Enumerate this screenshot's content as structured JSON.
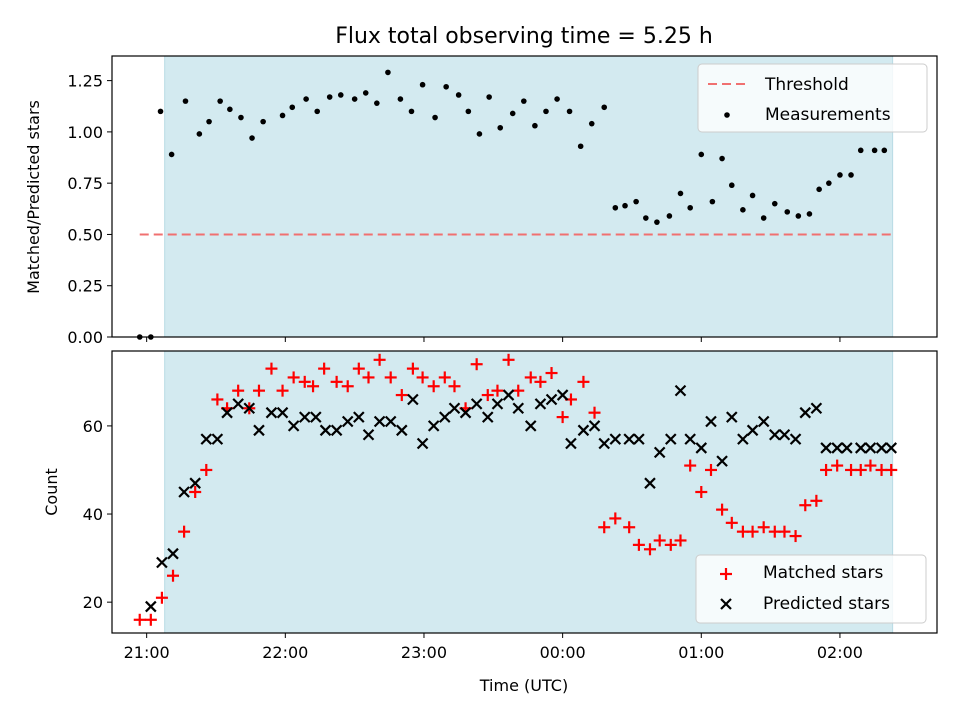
{
  "title": "Flux total observing time = 5.25 h",
  "chart_data": [
    {
      "type": "scatter",
      "ylabel": "Matched/Predicted stars",
      "xlabel": "",
      "x_unit": "hours UTC (continuing past midnight)",
      "xlim": [
        20.75,
        26.7
      ],
      "ylim": [
        0.0,
        1.37
      ],
      "yticks": [
        "0.00",
        "0.25",
        "0.50",
        "0.75",
        "1.00",
        "1.25"
      ],
      "shaded_interval": [
        21.13,
        26.38
      ],
      "threshold": {
        "name": "Threshold",
        "value": 0.5,
        "x_range": [
          20.95,
          26.38
        ],
        "color": "#f07070"
      },
      "legend": {
        "position": "upper right",
        "entries": [
          "Threshold",
          "Measurements"
        ]
      },
      "series": [
        {
          "name": "Measurements",
          "color": "#000000",
          "x": [
            20.95,
            21.03,
            21.1,
            21.18,
            21.28,
            21.38,
            21.45,
            21.53,
            21.6,
            21.68,
            21.76,
            21.84,
            21.98,
            22.05,
            22.15,
            22.23,
            22.32,
            22.4,
            22.5,
            22.58,
            22.66,
            22.74,
            22.83,
            22.91,
            22.99,
            23.08,
            23.16,
            23.25,
            23.32,
            23.4,
            23.47,
            23.55,
            23.64,
            23.72,
            23.8,
            23.88,
            23.96,
            24.05,
            24.13,
            24.21,
            24.3,
            24.38,
            24.45,
            24.53,
            24.6,
            24.68,
            24.77,
            24.85,
            24.92,
            25.0,
            25.08,
            25.15,
            25.22,
            25.3,
            25.37,
            25.45,
            25.53,
            25.62,
            25.7,
            25.78,
            25.85,
            25.92,
            26.0,
            26.08,
            26.15,
            26.25,
            26.32
          ],
          "y": [
            0.0,
            0.0,
            1.1,
            0.89,
            1.15,
            0.99,
            1.05,
            1.15,
            1.11,
            1.07,
            0.97,
            1.05,
            1.08,
            1.12,
            1.16,
            1.1,
            1.17,
            1.18,
            1.16,
            1.19,
            1.14,
            1.29,
            1.16,
            1.1,
            1.23,
            1.07,
            1.22,
            1.18,
            1.1,
            0.99,
            1.17,
            1.02,
            1.09,
            1.15,
            1.03,
            1.1,
            1.16,
            1.1,
            0.93,
            1.04,
            1.12,
            0.63,
            0.64,
            0.66,
            0.58,
            0.56,
            0.59,
            0.7,
            0.63,
            0.89,
            0.66,
            0.87,
            0.74,
            0.62,
            0.69,
            0.58,
            0.65,
            0.61,
            0.59,
            0.6,
            0.72,
            0.75,
            0.79,
            0.79,
            0.91,
            0.91,
            0.91
          ]
        }
      ]
    },
    {
      "type": "scatter",
      "ylabel": "Count",
      "xlabel": "Time (UTC)",
      "xlim": [
        20.75,
        26.7
      ],
      "ylim": [
        13,
        77
      ],
      "yticks": [
        "20",
        "40",
        "60"
      ],
      "xticks": [
        "21:00",
        "22:00",
        "23:00",
        "00:00",
        "01:00",
        "02:00"
      ],
      "xtick_values": [
        21,
        22,
        23,
        24,
        25,
        26
      ],
      "shaded_interval": [
        21.13,
        26.38
      ],
      "legend": {
        "position": "lower right",
        "entries": [
          "Matched stars",
          "Predicted stars"
        ]
      },
      "series": [
        {
          "name": "Matched stars",
          "marker": "+",
          "color": "#ff0000",
          "x": [
            20.95,
            21.03,
            21.11,
            21.19,
            21.27,
            21.35,
            21.43,
            21.51,
            21.58,
            21.66,
            21.74,
            21.81,
            21.9,
            21.98,
            22.06,
            22.14,
            22.2,
            22.28,
            22.37,
            22.45,
            22.53,
            22.6,
            22.68,
            22.76,
            22.84,
            22.92,
            22.99,
            23.07,
            23.15,
            23.22,
            23.3,
            23.38,
            23.46,
            23.53,
            23.61,
            23.68,
            23.77,
            23.84,
            23.92,
            24.0,
            24.06,
            24.15,
            24.23,
            24.3,
            24.38,
            24.48,
            24.55,
            24.63,
            24.7,
            24.78,
            24.85,
            24.92,
            25.0,
            25.07,
            25.15,
            25.22,
            25.3,
            25.37,
            25.45,
            25.53,
            25.6,
            25.68,
            25.75,
            25.83,
            25.9,
            25.98,
            26.08,
            26.15,
            26.22,
            26.3,
            26.37
          ],
          "y": [
            16,
            16,
            21,
            26,
            36,
            45,
            50,
            66,
            64,
            68,
            64,
            68,
            73,
            68,
            71,
            70,
            69,
            73,
            70,
            69,
            73,
            71,
            75,
            71,
            67,
            73,
            71,
            69,
            71,
            69,
            64,
            74,
            67,
            68,
            75,
            68,
            71,
            70,
            72,
            62,
            66,
            70,
            63,
            37,
            39,
            37,
            33,
            32,
            34,
            33,
            34,
            51,
            45,
            50,
            41,
            38,
            36,
            36,
            37,
            36,
            36,
            35,
            42,
            43,
            50,
            51,
            50,
            50,
            51,
            50,
            50
          ]
        },
        {
          "name": "Predicted stars",
          "marker": "x",
          "color": "#000000",
          "x": [
            21.03,
            21.11,
            21.19,
            21.27,
            21.35,
            21.43,
            21.51,
            21.58,
            21.66,
            21.74,
            21.81,
            21.9,
            21.98,
            22.06,
            22.14,
            22.22,
            22.29,
            22.37,
            22.45,
            22.53,
            22.6,
            22.68,
            22.76,
            22.84,
            22.92,
            22.99,
            23.07,
            23.15,
            23.22,
            23.3,
            23.38,
            23.46,
            23.53,
            23.61,
            23.68,
            23.77,
            23.84,
            23.92,
            24.0,
            24.06,
            24.15,
            24.23,
            24.3,
            24.38,
            24.48,
            24.55,
            24.63,
            24.7,
            24.78,
            24.85,
            24.92,
            25.0,
            25.07,
            25.15,
            25.22,
            25.3,
            25.37,
            25.45,
            25.53,
            25.6,
            25.68,
            25.75,
            25.83,
            25.9,
            25.98,
            26.05,
            26.15,
            26.22,
            26.3,
            26.37
          ],
          "y": [
            19,
            29,
            31,
            45,
            47,
            57,
            57,
            63,
            65,
            64,
            59,
            63,
            63,
            60,
            62,
            62,
            59,
            59,
            61,
            62,
            58,
            61,
            61,
            59,
            66,
            56,
            60,
            62,
            64,
            63,
            65,
            62,
            65,
            67,
            64,
            60,
            65,
            66,
            67,
            56,
            59,
            60,
            56,
            57,
            57,
            57,
            47,
            54,
            57,
            68,
            57,
            55,
            61,
            52,
            62,
            57,
            59,
            61,
            58,
            58,
            57,
            63,
            64,
            55,
            55,
            55,
            55,
            55,
            55,
            55
          ]
        }
      ]
    }
  ]
}
